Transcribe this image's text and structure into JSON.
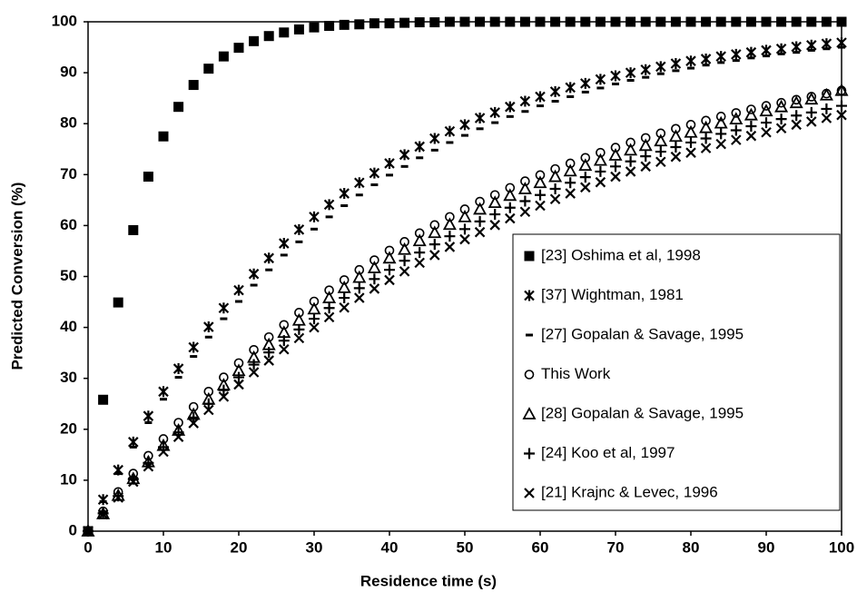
{
  "chart_data": {
    "type": "scatter",
    "x_label": "Residence time (s)",
    "y_label": "Predicted Conversion (%)",
    "x": [
      0,
      2,
      4,
      6,
      8,
      10,
      12,
      14,
      16,
      18,
      20,
      22,
      24,
      26,
      28,
      30,
      32,
      34,
      36,
      38,
      40,
      42,
      44,
      46,
      48,
      50,
      52,
      54,
      56,
      58,
      60,
      62,
      64,
      66,
      68,
      70,
      72,
      74,
      76,
      78,
      80,
      82,
      84,
      86,
      88,
      90,
      92,
      94,
      96,
      98,
      100
    ],
    "xlim": [
      0,
      100
    ],
    "xticks": [
      0,
      10,
      20,
      30,
      40,
      50,
      60,
      70,
      80,
      90,
      100
    ],
    "ylim": [
      0,
      100
    ],
    "yticks": [
      0,
      10,
      20,
      30,
      40,
      50,
      60,
      70,
      80,
      90,
      100
    ],
    "grid": false,
    "legend": "right",
    "series": [
      {
        "name": "[23] Oshima et al, 1998",
        "marker": "square",
        "color": "#000000",
        "values": [
          0,
          25.8,
          44.9,
          59.1,
          69.6,
          77.5,
          83.3,
          87.6,
          90.8,
          93.2,
          94.9,
          96.2,
          97.2,
          97.9,
          98.5,
          98.9,
          99.2,
          99.4,
          99.5,
          99.7,
          99.7,
          99.8,
          99.9,
          99.9,
          100,
          100,
          100,
          100,
          100,
          100,
          100,
          100,
          100,
          100,
          100,
          100,
          100,
          100,
          100,
          100,
          100,
          100,
          100,
          100,
          100,
          100,
          100,
          100,
          100,
          100,
          100
        ]
      },
      {
        "name": "[37] Wightman, 1981",
        "marker": "asterisk",
        "color": "#000000",
        "values": [
          0,
          6.2,
          12.0,
          17.5,
          22.6,
          27.4,
          31.9,
          36.1,
          40.1,
          43.8,
          47.3,
          50.5,
          53.6,
          56.5,
          59.2,
          61.7,
          64.1,
          66.3,
          68.4,
          70.3,
          72.2,
          73.9,
          75.5,
          77.1,
          78.5,
          79.8,
          81.1,
          82.2,
          83.3,
          84.4,
          85.3,
          86.3,
          87.1,
          87.9,
          88.7,
          89.4,
          90.0,
          90.6,
          91.2,
          91.8,
          92.3,
          92.7,
          93.2,
          93.6,
          94.0,
          94.4,
          94.7,
          95.1,
          95.4,
          95.7,
          95.9
        ]
      },
      {
        "name": "[27] Gopalan & Savage, 1995",
        "marker": "dash",
        "color": "#000000",
        "values": [
          0,
          5.8,
          11.3,
          16.5,
          21.3,
          25.9,
          30.2,
          34.3,
          38.1,
          41.7,
          45.1,
          48.3,
          51.3,
          54.2,
          56.8,
          59.3,
          61.7,
          63.9,
          66.0,
          68.0,
          69.9,
          71.6,
          73.3,
          74.8,
          76.3,
          77.7,
          79.0,
          80.2,
          81.4,
          82.4,
          83.5,
          84.4,
          85.3,
          86.2,
          87.0,
          87.8,
          88.5,
          89.1,
          89.8,
          90.4,
          90.9,
          91.5,
          92.0,
          92.4,
          92.9,
          93.3,
          93.7,
          94.0,
          94.4,
          94.7,
          95.0
        ]
      },
      {
        "name": "This Work",
        "marker": "circle",
        "color": "#000000",
        "values": [
          0,
          3.9,
          7.7,
          11.3,
          14.8,
          18.1,
          21.3,
          24.4,
          27.4,
          30.2,
          33.0,
          35.6,
          38.1,
          40.5,
          42.9,
          45.1,
          47.3,
          49.3,
          51.3,
          53.2,
          55.1,
          56.8,
          58.5,
          60.1,
          61.7,
          63.2,
          64.7,
          66.0,
          67.4,
          68.7,
          69.9,
          71.1,
          72.2,
          73.3,
          74.3,
          75.3,
          76.3,
          77.2,
          78.1,
          79.0,
          79.8,
          80.6,
          81.4,
          82.1,
          82.8,
          83.5,
          84.1,
          84.7,
          85.3,
          85.9,
          86.5
        ]
      },
      {
        "name": "[28] Gopalan & Savage, 1995",
        "marker": "triangle",
        "color": "#000000",
        "values": [
          0,
          3.4,
          7.0,
          10.3,
          13.6,
          16.8,
          19.8,
          22.9,
          25.9,
          28.7,
          31.5,
          34.1,
          36.6,
          39.0,
          41.4,
          43.6,
          45.8,
          47.8,
          49.8,
          51.7,
          53.6,
          55.3,
          57.0,
          58.6,
          60.2,
          61.7,
          63.2,
          64.5,
          65.9,
          67.2,
          68.4,
          69.6,
          70.7,
          71.8,
          72.8,
          73.8,
          74.8,
          75.7,
          76.6,
          77.5,
          78.3,
          79.2,
          80.1,
          80.9,
          81.7,
          82.5,
          83.3,
          84.1,
          84.8,
          85.6,
          86.5
        ]
      },
      {
        "name": "[24] Koo et al, 1997",
        "marker": "plus",
        "color": "#000000",
        "values": [
          0,
          3.5,
          6.9,
          10.2,
          13.4,
          16.5,
          19.4,
          22.3,
          25.0,
          27.7,
          30.2,
          32.7,
          35.1,
          37.4,
          39.6,
          41.7,
          43.8,
          45.8,
          47.7,
          49.5,
          51.3,
          53.1,
          54.7,
          56.3,
          57.9,
          59.3,
          60.8,
          62.2,
          63.5,
          64.8,
          66.0,
          67.2,
          68.4,
          69.5,
          70.6,
          71.6,
          72.6,
          73.6,
          74.5,
          75.4,
          76.3,
          77.1,
          78.0,
          78.7,
          79.5,
          80.2,
          80.9,
          81.6,
          82.2,
          82.9,
          83.5
        ]
      },
      {
        "name": "[21] Krajnc & Levec, 1996",
        "marker": "cross",
        "color": "#000000",
        "values": [
          0,
          3.3,
          6.6,
          9.7,
          12.7,
          15.6,
          18.5,
          21.2,
          23.8,
          26.4,
          28.8,
          31.2,
          33.5,
          35.7,
          37.9,
          40.0,
          42.0,
          43.9,
          45.8,
          47.6,
          49.3,
          51.0,
          52.7,
          54.2,
          55.8,
          57.3,
          58.7,
          60.1,
          61.4,
          62.7,
          63.9,
          65.2,
          66.3,
          67.5,
          68.5,
          69.6,
          70.6,
          71.6,
          72.5,
          73.5,
          74.3,
          75.2,
          76.0,
          76.8,
          77.6,
          78.3,
          79.1,
          79.8,
          80.4,
          81.1,
          81.7
        ]
      }
    ]
  }
}
